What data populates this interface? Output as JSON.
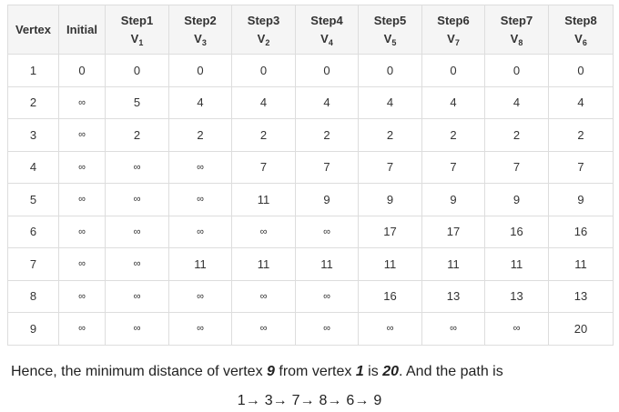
{
  "table": {
    "headers": [
      {
        "line1": "Vertex",
        "line2": "",
        "sub": ""
      },
      {
        "line1": "Initial",
        "line2": "",
        "sub": ""
      },
      {
        "line1": "Step1",
        "line2": "V",
        "sub": "1"
      },
      {
        "line1": "Step2",
        "line2": "V",
        "sub": "3"
      },
      {
        "line1": "Step3",
        "line2": "V",
        "sub": "2"
      },
      {
        "line1": "Step4",
        "line2": "V",
        "sub": "4"
      },
      {
        "line1": "Step5",
        "line2": "V",
        "sub": "5"
      },
      {
        "line1": "Step6",
        "line2": "V",
        "sub": "7"
      },
      {
        "line1": "Step7",
        "line2": "V",
        "sub": "8"
      },
      {
        "line1": "Step8",
        "line2": "V",
        "sub": "6"
      }
    ],
    "rows": [
      [
        "1",
        "0",
        "0",
        "0",
        "0",
        "0",
        "0",
        "0",
        "0",
        "0"
      ],
      [
        "2",
        "∞",
        "5",
        "4",
        "4",
        "4",
        "4",
        "4",
        "4",
        "4"
      ],
      [
        "3",
        "∞",
        "2",
        "2",
        "2",
        "2",
        "2",
        "2",
        "2",
        "2"
      ],
      [
        "4",
        "∞",
        "∞",
        "∞",
        "7",
        "7",
        "7",
        "7",
        "7",
        "7"
      ],
      [
        "5",
        "∞",
        "∞",
        "∞",
        "11",
        "9",
        "9",
        "9",
        "9",
        "9"
      ],
      [
        "6",
        "∞",
        "∞",
        "∞",
        "∞",
        "∞",
        "17",
        "17",
        "16",
        "16"
      ],
      [
        "7",
        "∞",
        "∞",
        "11",
        "11",
        "11",
        "11",
        "11",
        "11",
        "11"
      ],
      [
        "8",
        "∞",
        "∞",
        "∞",
        "∞",
        "∞",
        "16",
        "13",
        "13",
        "13"
      ],
      [
        "9",
        "∞",
        "∞",
        "∞",
        "∞",
        "∞",
        "∞",
        "∞",
        "∞",
        "20"
      ]
    ]
  },
  "conclusion": {
    "part1": "Hence, the minimum distance of vertex ",
    "vertex": "9",
    "part2": " from vertex ",
    "source": "1",
    "part3": " is ",
    "distance": "20",
    "part4": ". And the path is"
  },
  "path": {
    "arrow": "→",
    "nodes": [
      "1",
      "3",
      "7",
      "8",
      "6",
      "9"
    ]
  }
}
